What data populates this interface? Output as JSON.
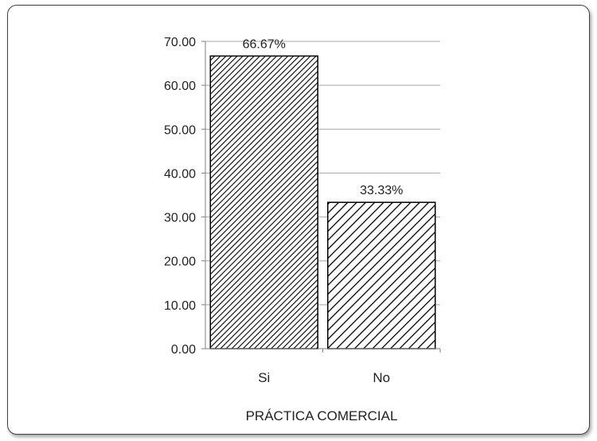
{
  "chart_data": {
    "type": "bar",
    "title": "",
    "xlabel": "PRÁCTICA COMERCIAL",
    "ylabel": "",
    "categories": [
      "Si",
      "No"
    ],
    "values": [
      66.67,
      33.33
    ],
    "data_labels": [
      "66.67%",
      "33.33%"
    ],
    "ylim": [
      0,
      70
    ],
    "yticks": [
      "0.00",
      "10.00",
      "20.00",
      "30.00",
      "40.00",
      "50.00",
      "60.00",
      "70.00"
    ],
    "grid": true,
    "legend": "none",
    "colors": {
      "bar_stroke": "#000000",
      "grid": "#a6a6a6",
      "hatch": "#000000"
    },
    "bar_fills": [
      "dense-diagonal-hatch",
      "wide-diagonal-hatch"
    ]
  }
}
